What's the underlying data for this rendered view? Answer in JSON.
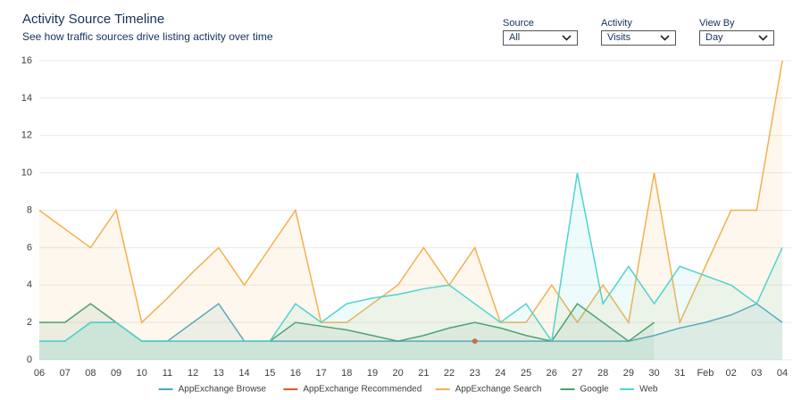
{
  "header": {
    "title": "Activity Source Timeline",
    "subtitle": "See how traffic sources drive listing activity over time"
  },
  "filters": [
    {
      "label": "Source",
      "value": "All"
    },
    {
      "label": "Activity",
      "value": "Visits"
    },
    {
      "label": "View By",
      "value": "Day"
    }
  ],
  "chart_data": {
    "type": "area",
    "categories": [
      "06",
      "07",
      "08",
      "09",
      "10",
      "11",
      "12",
      "13",
      "14",
      "15",
      "16",
      "17",
      "18",
      "19",
      "20",
      "21",
      "22",
      "23",
      "24",
      "25",
      "26",
      "27",
      "28",
      "29",
      "30",
      "31",
      "Feb",
      "02",
      "03",
      "04"
    ],
    "series": [
      {
        "name": "AppExchange Browse",
        "color": "#4aa7c8",
        "values": [
          1,
          1,
          2,
          2,
          1,
          1,
          2,
          3,
          1,
          1,
          1,
          1,
          1,
          1,
          1,
          1,
          1,
          1,
          1,
          1,
          1,
          1,
          1,
          1,
          1.3,
          1.7,
          2,
          2.4,
          3,
          2
        ]
      },
      {
        "name": "AppExchange Recommended",
        "color": "#e0572d",
        "values": [
          null,
          null,
          null,
          null,
          null,
          null,
          null,
          null,
          null,
          null,
          null,
          null,
          null,
          null,
          null,
          null,
          null,
          1,
          null,
          null,
          null,
          null,
          null,
          null,
          null,
          null,
          null,
          null,
          null,
          null
        ]
      },
      {
        "name": "AppExchange Search",
        "color": "#f4b04d",
        "values": [
          8,
          7,
          6,
          8,
          2,
          3.3,
          4.7,
          6,
          4,
          6,
          8,
          2,
          2,
          3,
          4,
          6,
          4,
          6,
          2,
          2,
          4,
          2,
          4,
          2,
          10,
          2,
          5,
          8,
          8,
          16
        ]
      },
      {
        "name": "Google",
        "color": "#4d9e6e",
        "values": [
          2,
          2,
          3,
          2,
          1,
          1,
          1,
          1,
          1,
          1,
          2,
          1.8,
          1.6,
          1.3,
          1,
          1.3,
          1.7,
          2,
          1.7,
          1.3,
          1,
          3,
          2,
          1,
          2,
          null,
          null,
          null,
          null,
          null
        ]
      },
      {
        "name": "Web",
        "color": "#4fd4cf",
        "values": [
          1,
          1,
          2,
          2,
          1,
          1,
          1,
          1,
          1,
          1,
          3,
          2,
          3,
          3.3,
          3.5,
          3.8,
          4,
          3,
          2,
          3,
          1,
          10,
          3,
          5,
          3,
          5,
          4.5,
          4,
          3,
          6
        ]
      }
    ],
    "ylim": [
      0,
      16
    ],
    "yticks": [
      0,
      2,
      4,
      6,
      8,
      10,
      12,
      14,
      16
    ],
    "grid": true,
    "legend": "bottom"
  }
}
